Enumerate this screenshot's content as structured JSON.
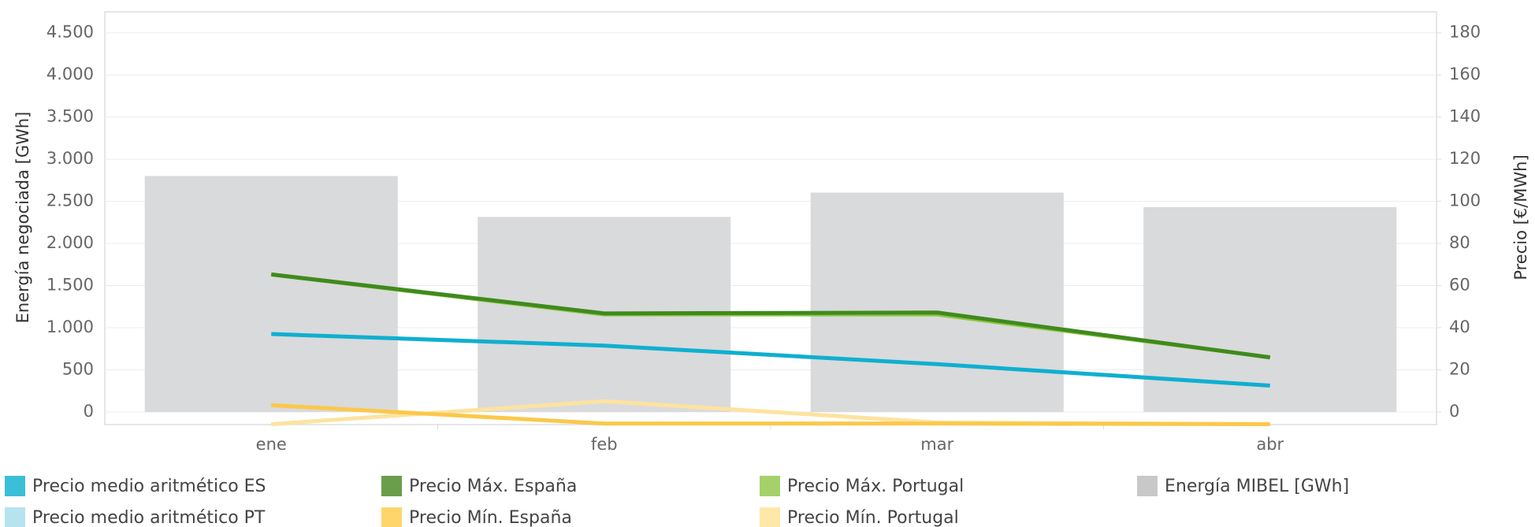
{
  "chart_data": {
    "type": "bar_line",
    "categories": [
      "ene",
      "feb",
      "mar",
      "abr"
    ],
    "ylabel": "Energía negociada [GWh]",
    "y2label": "Precio [€/MWh]",
    "ylim": [
      -150,
      4750
    ],
    "yticks": [
      0,
      500,
      {
        "value": 1000,
        "label": "1.000"
      },
      {
        "value": 1500,
        "label": "1.500"
      },
      {
        "value": 2000,
        "label": "2.000"
      },
      {
        "value": 2500,
        "label": "2.500"
      },
      {
        "value": 3000,
        "label": "3.000"
      },
      {
        "value": 3500,
        "label": "3.500"
      },
      {
        "value": 4000,
        "label": "4.000"
      },
      {
        "value": 4500,
        "label": "4.500"
      }
    ],
    "y2lim": [
      -6,
      190
    ],
    "y2ticks": [
      0,
      20,
      40,
      60,
      80,
      100,
      120,
      140,
      160,
      180
    ],
    "grid": true,
    "legend": "bottom",
    "series": [
      {
        "name": "Precio medio aritmético ES",
        "kind": "line",
        "axis": "y2",
        "color": "#0fafd0",
        "legend_color": "#3bbfd8",
        "values": [
          37.0,
          31.5,
          22.7,
          12.5
        ]
      },
      {
        "name": "Precio Máx. España",
        "kind": "line",
        "axis": "y2",
        "color": "#3f8a1e",
        "legend_color": "#6a9e4a",
        "values": [
          65.3,
          46.8,
          47.2,
          25.9
        ]
      },
      {
        "name": "Precio Máx. Portugal",
        "kind": "line",
        "axis": "y2",
        "color": "#8cc63f",
        "legend_color": "#a5d16a",
        "values": [
          65.3,
          46.3,
          46.3,
          26.0
        ]
      },
      {
        "name": "Energía MIBEL [GWh]",
        "kind": "bar",
        "axis": "y",
        "color": "#d9dadb",
        "legend_color": "#c8c8c8",
        "values": [
          2801,
          2315,
          2604,
          2431
        ]
      },
      {
        "name": "Precio medio aritmético PT",
        "kind": "line",
        "axis": "y2",
        "color": "#b7e3ee",
        "legend_color": "#b7e3ee",
        "values": [
          37.0,
          31.5,
          22.7,
          12.5
        ]
      },
      {
        "name": "Precio Mín. España",
        "kind": "line",
        "axis": "y2",
        "color": "#fbc84a",
        "legend_color": "#fdd56a",
        "values": [
          3.2,
          -5.5,
          -5.5,
          -5.8
        ]
      },
      {
        "name": "Precio Mín. Portugal",
        "kind": "line",
        "axis": "y2",
        "color": "#fde3a0",
        "legend_color": "#fde8a8",
        "values": [
          -5.8,
          5.1,
          -5.0,
          -5.8
        ]
      }
    ]
  }
}
